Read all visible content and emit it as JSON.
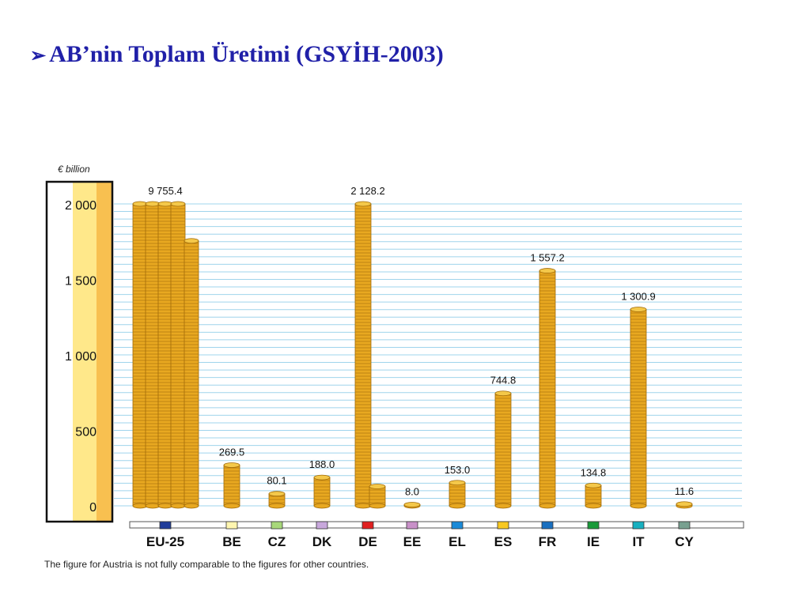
{
  "slide": {
    "bullet": "➢",
    "title": "AB’nin Toplam Üretimi (GSYİH-2003)"
  },
  "footnote": "The figure for Austria is not fully comparable to the figures for other countries.",
  "chart_data": {
    "type": "bar",
    "ylabel": "€ billion",
    "ylim": [
      0,
      2000
    ],
    "yticks": [
      0,
      500,
      1000,
      1500,
      2000
    ],
    "ytick_labels": [
      "0",
      "500",
      "1 000",
      "1 500",
      "2 000"
    ],
    "grid": true,
    "categories": [
      "EU-25",
      "BE",
      "CZ",
      "DK",
      "DE",
      "EE",
      "EL",
      "ES",
      "FR",
      "IE",
      "IT",
      "CY"
    ],
    "values": [
      9755.4,
      269.5,
      80.1,
      188.0,
      2128.2,
      8.0,
      153.0,
      744.8,
      1557.2,
      134.8,
      1300.9,
      11.6
    ],
    "value_labels": [
      "9 755.4",
      "269.5",
      "80.1",
      "188.0",
      "2 128.2",
      "8.0",
      "153.0",
      "744.8",
      "1 557.2",
      "134.8",
      "1 300.9",
      "11.6"
    ],
    "legend_colors": [
      "#1f3c9a",
      "#fff6b0",
      "#a8d87a",
      "#c8a8dc",
      "#e02020",
      "#c890c8",
      "#1a8ad8",
      "#f8c820",
      "#1a70c0",
      "#1a9a3a",
      "#18b0c0",
      "#78a090"
    ],
    "bar_color": "#e8a820",
    "band_colors": [
      "#ffe88a",
      "#f8c050"
    ]
  }
}
